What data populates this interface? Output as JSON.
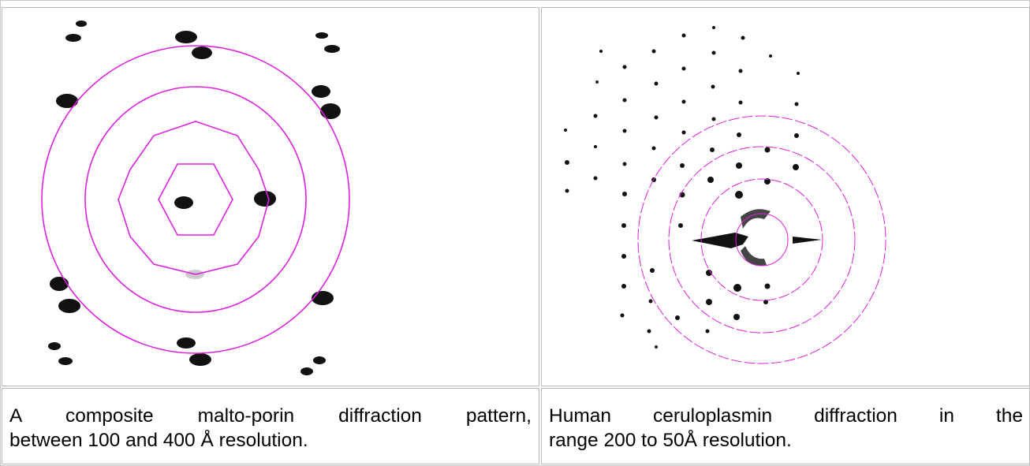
{
  "table": {
    "rows": [
      {
        "caption_lines": [
          "A composite malto-porin diffraction pattern,",
          "between 100 and 400 Å resolution."
        ]
      },
      {
        "caption_lines": [
          "Human ceruloplasmin diffraction in the",
          "range 200 to 50Å resolution."
        ]
      }
    ]
  }
}
